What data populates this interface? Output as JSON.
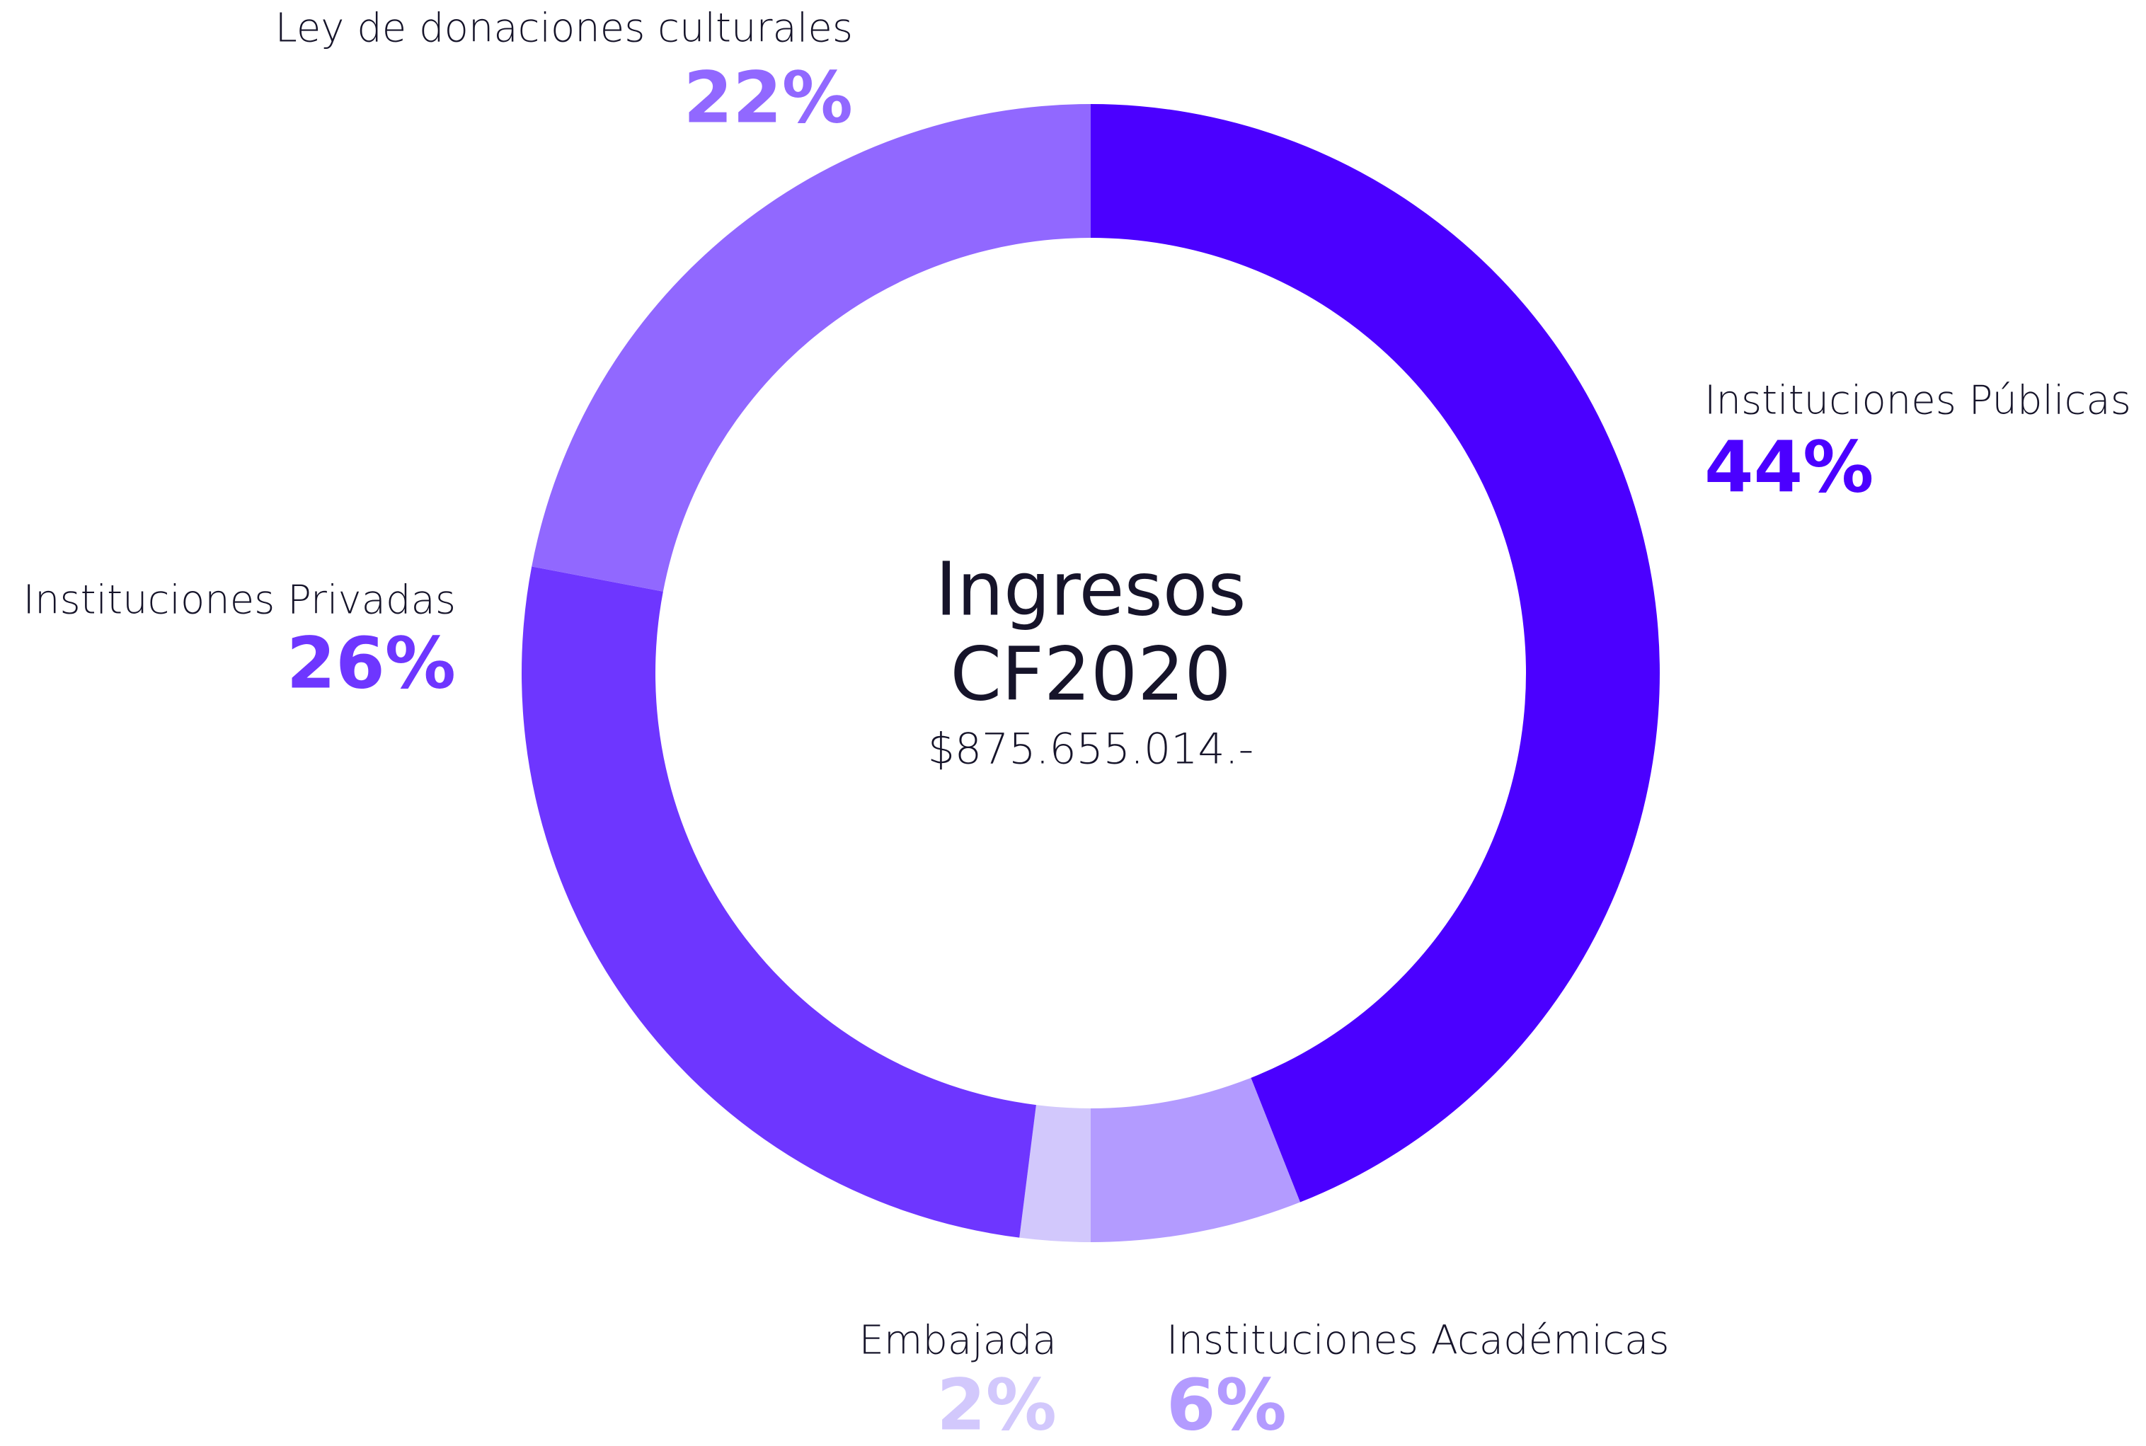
{
  "chart_data": {
    "type": "donut",
    "center_label": [
      "Ingresos",
      "CF2020"
    ],
    "center_value": "$875.655.014.-",
    "categories": [
      "Instituciones Públicas",
      "Instituciones Académicas",
      "Embajada",
      "Instituciones Privadas",
      "Ley de donaciones culturales"
    ],
    "values": [
      44,
      6,
      2,
      26,
      22
    ],
    "value_labels": [
      "44%",
      "6%",
      "2%",
      "26%",
      "22%"
    ],
    "colors": [
      "#4b00ff",
      "#b39bff",
      "#d2c8fc",
      "#6e36ff",
      "#9168ff"
    ]
  }
}
